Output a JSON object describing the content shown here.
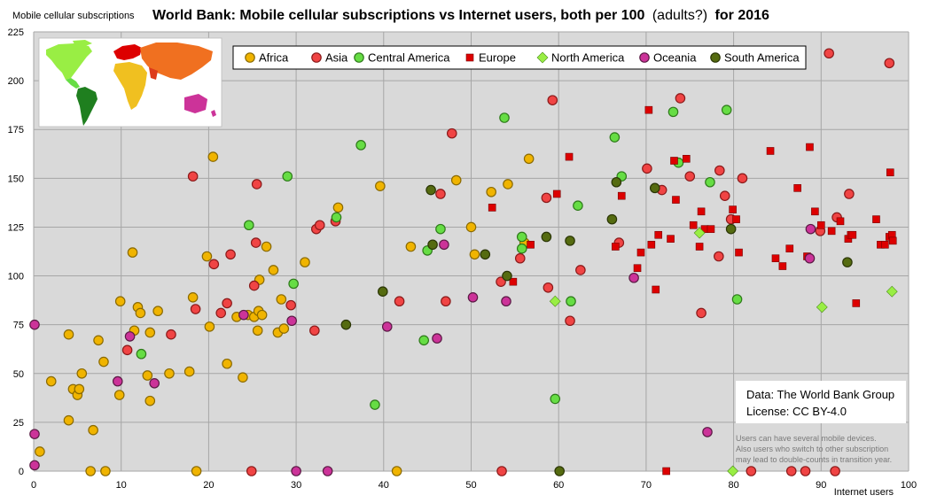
{
  "chart_data": {
    "type": "scatter",
    "title_bold": "World Bank: Mobile cellular subscriptions vs Internet users, both per 100",
    "title_paren": "(adults?)",
    "title_tail": "for 2016",
    "ylabel": "Mobile cellular subscriptions",
    "xlabel": "Internet users",
    "xlim": [
      0,
      100
    ],
    "ylim": [
      0,
      225
    ],
    "x_ticks": [
      "0",
      "10",
      "20",
      "30",
      "40",
      "50",
      "60",
      "70",
      "80",
      "90",
      "100"
    ],
    "y_ticks": [
      "0",
      "25",
      "50",
      "75",
      "100",
      "125",
      "150",
      "175",
      "200",
      "225"
    ],
    "grid": true,
    "legend_position": "top",
    "source_line1": "Data: The World Bank Group",
    "source_line2": "License: CC BY-4.0",
    "note_line1": "Users can have several mobile devices.",
    "note_line2": "Also users who switch to other subscription",
    "note_line3": "may lead to double-counts in transition year.",
    "series": [
      {
        "name": "Africa",
        "color": "#f0b400",
        "stroke": "#8a6a00",
        "marker": "circle",
        "points": [
          [
            0.7,
            10
          ],
          [
            2,
            46
          ],
          [
            4,
            26
          ],
          [
            4,
            70
          ],
          [
            4.5,
            42
          ],
          [
            5,
            39
          ],
          [
            5.2,
            42
          ],
          [
            5.5,
            50
          ],
          [
            6.5,
            0
          ],
          [
            6.8,
            21
          ],
          [
            7.4,
            67
          ],
          [
            8,
            56
          ],
          [
            8.2,
            0
          ],
          [
            9.8,
            39
          ],
          [
            9.9,
            87
          ],
          [
            11.3,
            112
          ],
          [
            11.5,
            72
          ],
          [
            11.9,
            84
          ],
          [
            12.2,
            81
          ],
          [
            13,
            49
          ],
          [
            13.3,
            71
          ],
          [
            13.3,
            36
          ],
          [
            14.2,
            82
          ],
          [
            15.5,
            50
          ],
          [
            17.8,
            51
          ],
          [
            18.2,
            89
          ],
          [
            18.6,
            0
          ],
          [
            19.8,
            110
          ],
          [
            20.1,
            74
          ],
          [
            20.5,
            161
          ],
          [
            22.1,
            55
          ],
          [
            23.2,
            79
          ],
          [
            23.9,
            48
          ],
          [
            24.5,
            80
          ],
          [
            25.2,
            79
          ],
          [
            25.6,
            72
          ],
          [
            25.7,
            82
          ],
          [
            25.8,
            98
          ],
          [
            26.1,
            80
          ],
          [
            26.6,
            115
          ],
          [
            27.4,
            103
          ],
          [
            27.9,
            71
          ],
          [
            28.3,
            88
          ],
          [
            28.6,
            73
          ],
          [
            31,
            107
          ],
          [
            34.8,
            135
          ],
          [
            39.6,
            146
          ],
          [
            41.5,
            0
          ],
          [
            43.1,
            115
          ],
          [
            48.3,
            149
          ],
          [
            50,
            125
          ],
          [
            50.4,
            111
          ],
          [
            52.3,
            143
          ],
          [
            54.2,
            147
          ],
          [
            56.1,
            117
          ],
          [
            56.6,
            160
          ]
        ]
      },
      {
        "name": "Asia",
        "color": "#f04444",
        "stroke": "#8a1a1a",
        "marker": "circle",
        "points": [
          [
            10.7,
            62
          ],
          [
            15.7,
            70
          ],
          [
            18.2,
            151
          ],
          [
            18.5,
            83
          ],
          [
            20.6,
            106
          ],
          [
            21.4,
            81
          ],
          [
            22.1,
            86
          ],
          [
            22.5,
            111
          ],
          [
            24.9,
            0
          ],
          [
            25.2,
            95
          ],
          [
            25.4,
            117
          ],
          [
            25.5,
            147
          ],
          [
            29.4,
            85
          ],
          [
            32.1,
            72
          ],
          [
            32.3,
            124
          ],
          [
            32.7,
            126
          ],
          [
            34.5,
            128
          ],
          [
            41.8,
            87
          ],
          [
            46.5,
            142
          ],
          [
            47.1,
            87
          ],
          [
            47.8,
            173
          ],
          [
            53.4,
            97
          ],
          [
            53.5,
            0
          ],
          [
            55.6,
            109
          ],
          [
            58.8,
            94
          ],
          [
            58.6,
            140
          ],
          [
            59.3,
            190
          ],
          [
            61.3,
            77
          ],
          [
            62.5,
            103
          ],
          [
            66.9,
            117
          ],
          [
            71.8,
            144
          ],
          [
            70.1,
            155
          ],
          [
            73.9,
            191
          ],
          [
            75,
            151
          ],
          [
            76.3,
            81
          ],
          [
            78.3,
            110
          ],
          [
            78.4,
            154
          ],
          [
            79,
            141
          ],
          [
            79.7,
            129
          ],
          [
            81,
            150
          ],
          [
            82,
            0
          ],
          [
            86.6,
            0
          ],
          [
            88.2,
            0
          ],
          [
            89.9,
            123
          ],
          [
            90.9,
            214
          ],
          [
            91.6,
            0
          ],
          [
            91.8,
            130
          ],
          [
            93.2,
            142
          ],
          [
            97.8,
            209
          ]
        ]
      },
      {
        "name": "Central America",
        "color": "#66dd44",
        "stroke": "#2e7a1a",
        "marker": "circle",
        "points": [
          [
            12.3,
            60
          ],
          [
            24.6,
            126
          ],
          [
            29,
            151
          ],
          [
            29.7,
            96
          ],
          [
            34.6,
            130
          ],
          [
            37.4,
            167
          ],
          [
            39,
            34
          ],
          [
            44.6,
            67
          ],
          [
            45,
            113
          ],
          [
            46.5,
            124
          ],
          [
            53.8,
            181
          ],
          [
            55.8,
            120
          ],
          [
            55.8,
            114
          ],
          [
            59.6,
            37
          ],
          [
            61.4,
            87
          ],
          [
            62.2,
            136
          ],
          [
            66.4,
            171
          ],
          [
            67.2,
            151
          ],
          [
            73.1,
            184
          ],
          [
            73.7,
            158
          ],
          [
            77.3,
            148
          ],
          [
            79.2,
            185
          ],
          [
            80.4,
            88
          ]
        ]
      },
      {
        "name": "Europe",
        "color": "#dd0000",
        "stroke": "#770000",
        "marker": "square",
        "points": [
          [
            52.4,
            135
          ],
          [
            54.8,
            97
          ],
          [
            56.8,
            116
          ],
          [
            59.8,
            142
          ],
          [
            61.2,
            161
          ],
          [
            66.5,
            115
          ],
          [
            67.2,
            141
          ],
          [
            69,
            104
          ],
          [
            69.4,
            112
          ],
          [
            70.3,
            185
          ],
          [
            70.6,
            116
          ],
          [
            71.1,
            93
          ],
          [
            71.4,
            121
          ],
          [
            72.3,
            0
          ],
          [
            72.8,
            119
          ],
          [
            73.2,
            159
          ],
          [
            73.4,
            139
          ],
          [
            74.6,
            160
          ],
          [
            75.4,
            126
          ],
          [
            76.1,
            115
          ],
          [
            76.3,
            133
          ],
          [
            76.7,
            124
          ],
          [
            77.4,
            124
          ],
          [
            79.9,
            134
          ],
          [
            80.3,
            129
          ],
          [
            80.6,
            112
          ],
          [
            84.2,
            164
          ],
          [
            84.8,
            109
          ],
          [
            85.6,
            105
          ],
          [
            86.4,
            114
          ],
          [
            87.3,
            145
          ],
          [
            88.4,
            110
          ],
          [
            88.7,
            166
          ],
          [
            89.3,
            133
          ],
          [
            90,
            126
          ],
          [
            91.2,
            123
          ],
          [
            92.2,
            128
          ],
          [
            93.1,
            119
          ],
          [
            93.4,
            121
          ],
          [
            93.6,
            121
          ],
          [
            94,
            86
          ],
          [
            96.3,
            129
          ],
          [
            96.8,
            116
          ],
          [
            97.3,
            116
          ],
          [
            97.8,
            120
          ],
          [
            97.9,
            153
          ],
          [
            98.1,
            121
          ],
          [
            98.2,
            118
          ]
        ]
      },
      {
        "name": "North America",
        "color": "#99ee44",
        "stroke": "#4a8a1a",
        "marker": "diamond",
        "points": [
          [
            59.6,
            87
          ],
          [
            76.1,
            122
          ],
          [
            79.9,
            0
          ],
          [
            90.1,
            84
          ],
          [
            98.1,
            92
          ]
        ]
      },
      {
        "name": "Oceania",
        "color": "#cc3399",
        "stroke": "#5a1a44",
        "marker": "circle",
        "points": [
          [
            0.1,
            75
          ],
          [
            0.1,
            19
          ],
          [
            0.1,
            3
          ],
          [
            9.6,
            46
          ],
          [
            11,
            69
          ],
          [
            13.8,
            45
          ],
          [
            24,
            80
          ],
          [
            29.5,
            77
          ],
          [
            30,
            0
          ],
          [
            33.6,
            0
          ],
          [
            40.4,
            74
          ],
          [
            46.1,
            68
          ],
          [
            46.9,
            116
          ],
          [
            50.2,
            89
          ],
          [
            54,
            87
          ],
          [
            68.6,
            99
          ],
          [
            77,
            20
          ],
          [
            88.8,
            124
          ],
          [
            88.7,
            109
          ]
        ]
      },
      {
        "name": "South America",
        "color": "#556b10",
        "stroke": "#2a3505",
        "marker": "circle",
        "points": [
          [
            35.7,
            75
          ],
          [
            39.9,
            92
          ],
          [
            45.4,
            144
          ],
          [
            45.6,
            116
          ],
          [
            51.6,
            111
          ],
          [
            54.1,
            100
          ],
          [
            58.6,
            120
          ],
          [
            61.3,
            118
          ],
          [
            60.1,
            0
          ],
          [
            66.1,
            129
          ],
          [
            66.6,
            148
          ],
          [
            71,
            145
          ],
          [
            79.7,
            124
          ],
          [
            93,
            107
          ]
        ]
      }
    ]
  }
}
